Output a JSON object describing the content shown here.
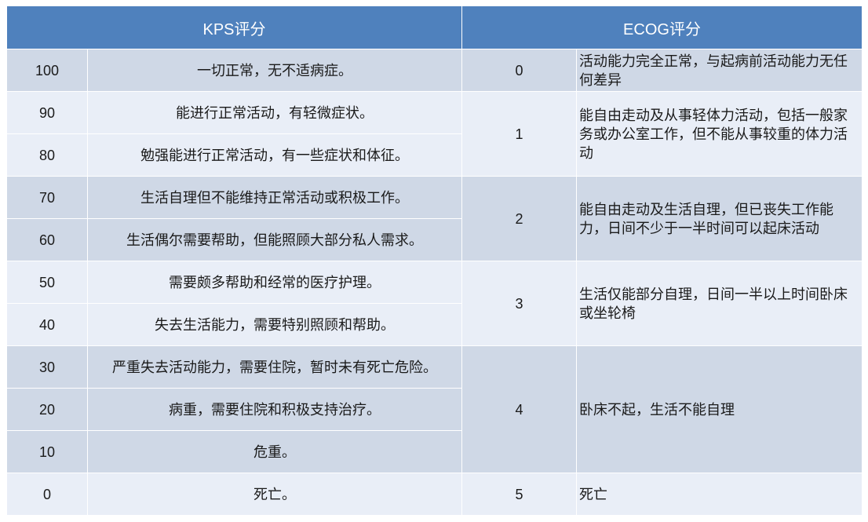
{
  "header": {
    "kps": "KPS评分",
    "ecog": "ECOG评分"
  },
  "colors": {
    "header": "#4f81bd",
    "row_dark": "#cfd8e6",
    "row_light": "#e9eef7"
  },
  "groups": [
    {
      "shade": "dark",
      "kps": [
        {
          "score": "100",
          "desc": "一切正常，无不适病症。"
        }
      ],
      "ecog": {
        "score": "0",
        "desc": "活动能力完全正常，与起病前活动能力无任何差异"
      }
    },
    {
      "shade": "light",
      "kps": [
        {
          "score": "90",
          "desc": "能进行正常活动，有轻微症状。"
        },
        {
          "score": "80",
          "desc": "勉强能进行正常活动，有一些症状和体征。"
        }
      ],
      "ecog": {
        "score": "1",
        "desc": "能自由走动及从事轻体力活动，包括一般家务或办公室工作，但不能从事较重的体力活动"
      }
    },
    {
      "shade": "dark",
      "kps": [
        {
          "score": "70",
          "desc": "生活自理但不能维持正常活动或积极工作。"
        },
        {
          "score": "60",
          "desc": "生活偶尔需要帮助，但能照顾大部分私人需求。"
        }
      ],
      "ecog": {
        "score": "2",
        "desc": "能自由走动及生活自理，但已丧失工作能力，日间不少于一半时间可以起床活动"
      }
    },
    {
      "shade": "light",
      "kps": [
        {
          "score": "50",
          "desc": "需要颇多帮助和经常的医疗护理。"
        },
        {
          "score": "40",
          "desc": "失去生活能力，需要特别照顾和帮助。"
        }
      ],
      "ecog": {
        "score": "3",
        "desc": "生活仅能部分自理，日间一半以上时间卧床或坐轮椅"
      }
    },
    {
      "shade": "dark",
      "kps": [
        {
          "score": "30",
          "desc": "严重失去活动能力，需要住院，暂时未有死亡危险。"
        },
        {
          "score": "20",
          "desc": "病重，需要住院和积极支持治疗。"
        },
        {
          "score": "10",
          "desc": "危重。"
        }
      ],
      "ecog": {
        "score": "4",
        "desc": "卧床不起，生活不能自理"
      }
    },
    {
      "shade": "light",
      "kps": [
        {
          "score": "0",
          "desc": "死亡。"
        }
      ],
      "ecog": {
        "score": "5",
        "desc": "死亡"
      }
    }
  ]
}
